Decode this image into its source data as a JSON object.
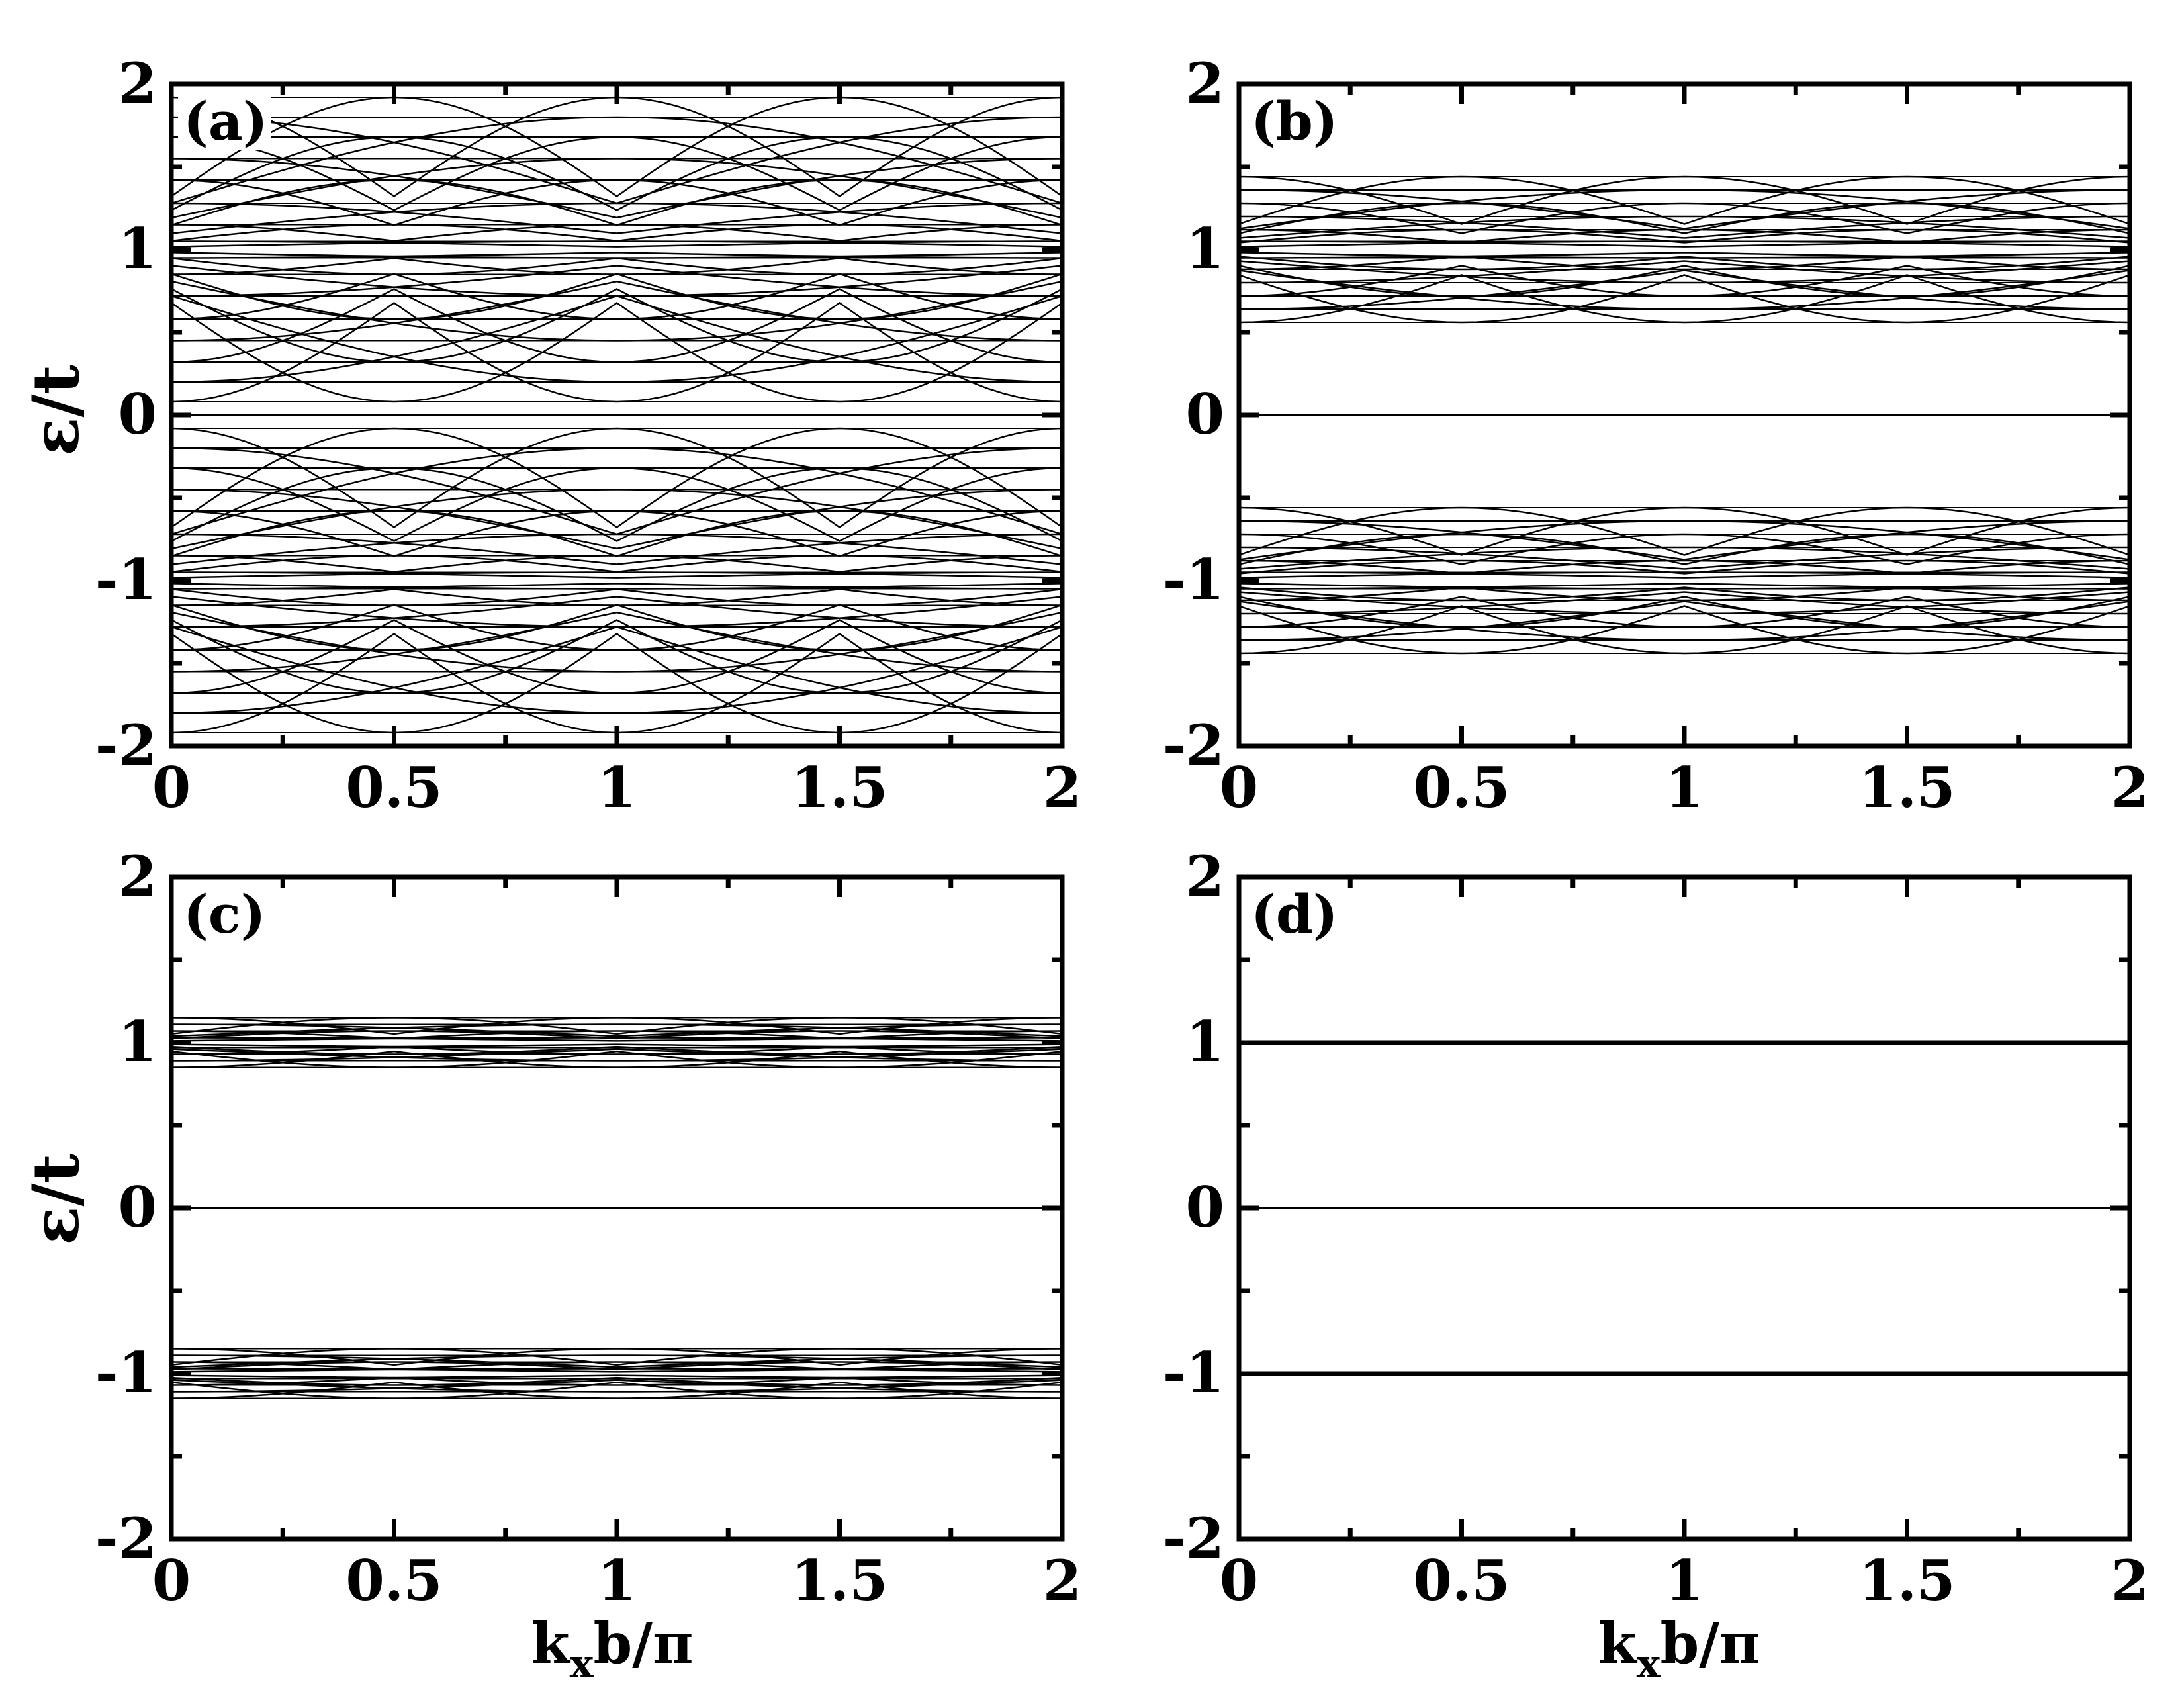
{
  "figure": {
    "ylabel": "ε/t",
    "xlabel_main": "k",
    "xlabel_sub": "x",
    "xlabel_rest": "b/π"
  },
  "chart_data": [
    {
      "type": "line",
      "panel_label": "(a)",
      "xlim": [
        0,
        2
      ],
      "ylim": [
        -2,
        2
      ],
      "xticks": [
        "0",
        "0.5",
        "1",
        "1.5",
        "2"
      ],
      "yticks": [
        "-2",
        "-1",
        "0",
        "1",
        "2"
      ],
      "grid": false,
      "description_values": {
        "band_center_positive": 1.0,
        "band_center_negative": -1.0,
        "band_halfwidth": 1.0,
        "zero_mode": 0.0,
        "crossings_at_kx": [
          0,
          1,
          2
        ]
      },
      "series": [
        {
          "style": "flat",
          "values": [
            0.0
          ]
        },
        {
          "style": "dispersive",
          "center": 1.0,
          "amplitudes": [
            0.05,
            0.15,
            0.28,
            0.42,
            0.55,
            0.68,
            0.8,
            0.92
          ]
        },
        {
          "style": "dispersive",
          "center": -1.0,
          "amplitudes": [
            0.05,
            0.15,
            0.28,
            0.42,
            0.55,
            0.68,
            0.8,
            0.92
          ]
        }
      ]
    },
    {
      "type": "line",
      "panel_label": "(b)",
      "xlim": [
        0,
        2
      ],
      "ylim": [
        -2,
        2
      ],
      "xticks": [
        "0",
        "0.5",
        "1",
        "1.5",
        "2"
      ],
      "yticks": [
        "-2",
        "-1",
        "0",
        "1",
        "2"
      ],
      "grid": false,
      "description_values": {
        "upper_band": [
          0.5,
          1.5
        ],
        "lower_band": [
          -1.5,
          -0.5
        ],
        "zero_mode": 0.0
      },
      "series": [
        {
          "style": "flat",
          "values": [
            0.0
          ]
        },
        {
          "style": "dispersive",
          "center": 1.0,
          "amplitudes": [
            0.05,
            0.12,
            0.2,
            0.28,
            0.36,
            0.44
          ]
        },
        {
          "style": "dispersive",
          "center": -1.0,
          "amplitudes": [
            0.05,
            0.12,
            0.2,
            0.28,
            0.36,
            0.44
          ]
        }
      ]
    },
    {
      "type": "line",
      "panel_label": "(c)",
      "xlim": [
        0,
        2
      ],
      "ylim": [
        -2,
        2
      ],
      "xticks": [
        "0",
        "0.5",
        "1",
        "1.5",
        "2"
      ],
      "yticks": [
        "-2",
        "-1",
        "0",
        "1",
        "2"
      ],
      "grid": false,
      "description_values": {
        "upper_band": [
          0.85,
          1.15
        ],
        "lower_band": [
          -1.15,
          -0.85
        ],
        "zero_mode": 0.0
      },
      "series": [
        {
          "style": "flat",
          "values": [
            0.0
          ]
        },
        {
          "style": "dispersive",
          "center": 1.0,
          "amplitudes": [
            0.03,
            0.07,
            0.11,
            0.15
          ]
        },
        {
          "style": "dispersive",
          "center": -1.0,
          "amplitudes": [
            0.03,
            0.07,
            0.11,
            0.15
          ]
        }
      ]
    },
    {
      "type": "line",
      "panel_label": "(d)",
      "xlim": [
        0,
        2
      ],
      "ylim": [
        -2,
        2
      ],
      "xticks": [
        "0",
        "0.5",
        "1",
        "1.5",
        "2"
      ],
      "yticks": [
        "-2",
        "-1",
        "0",
        "1",
        "2"
      ],
      "grid": false,
      "series": [
        {
          "style": "flat",
          "values": [
            1.0,
            0.0,
            -1.0
          ]
        }
      ]
    }
  ]
}
